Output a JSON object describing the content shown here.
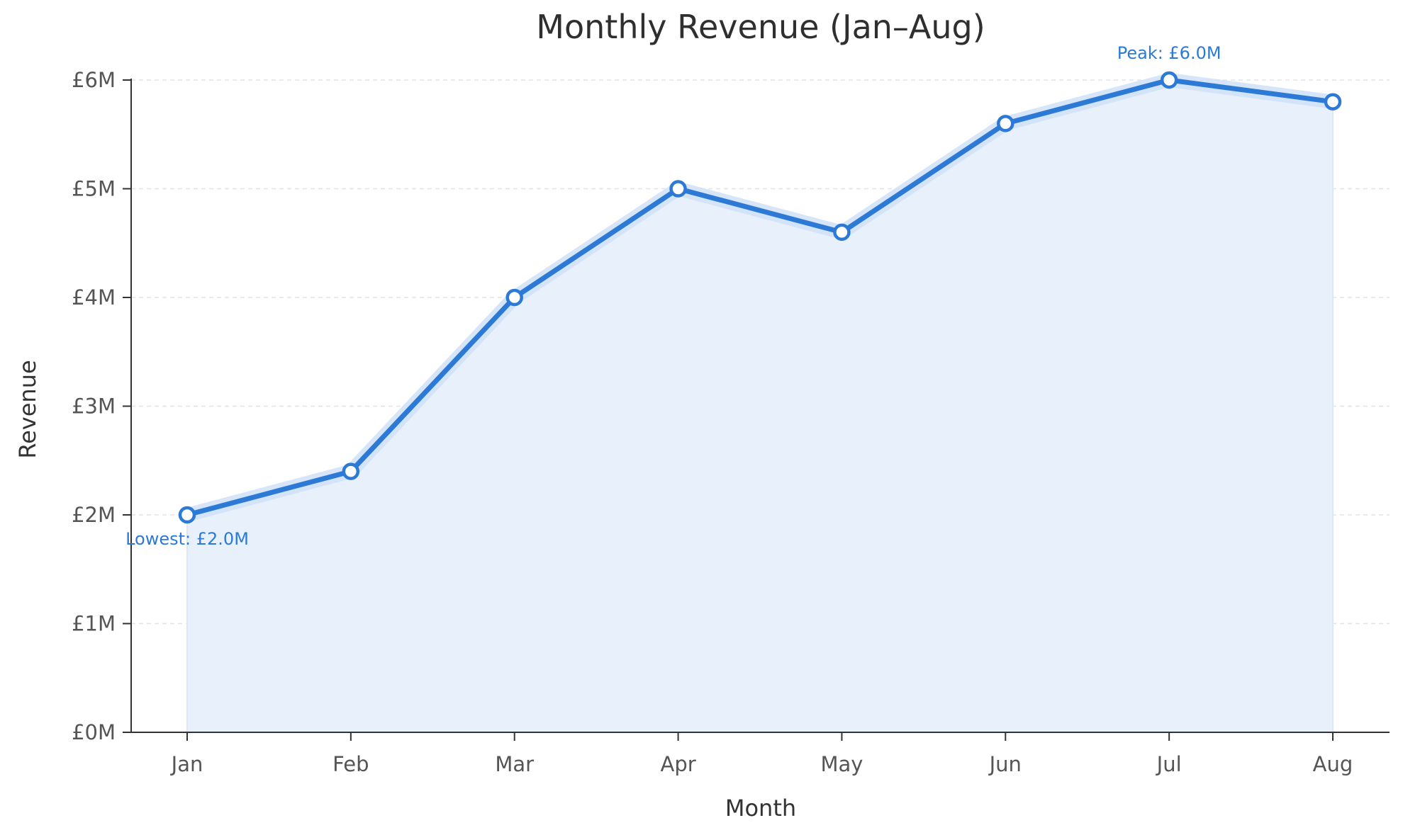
{
  "chart_data": {
    "type": "area",
    "title": "Monthly Revenue (Jan–Aug)",
    "xlabel": "Month",
    "ylabel": "Revenue",
    "categories": [
      "Jan",
      "Feb",
      "Mar",
      "Apr",
      "May",
      "Jun",
      "Jul",
      "Aug"
    ],
    "values": [
      2.0,
      2.4,
      4.0,
      5.0,
      4.6,
      5.6,
      6.0,
      5.8
    ],
    "ylim": [
      0,
      6
    ],
    "yticks": [
      0,
      1,
      2,
      3,
      4,
      5,
      6
    ],
    "ytick_labels": [
      "£0M",
      "£1M",
      "£2M",
      "£3M",
      "£4M",
      "£5M",
      "£6M"
    ],
    "grid": "horizontal dashed",
    "legend": "none",
    "colors": {
      "line": "#2d7ad6",
      "area_fill": "#e8f0fb",
      "line_glow": "#cfe1f7",
      "marker_fill": "#ffffff",
      "annotation": "#2d7ad6"
    },
    "annotations": [
      {
        "category": "Jul",
        "value": 6.0,
        "text": "Peak: £6.0M"
      },
      {
        "category": "Jan",
        "value": 2.0,
        "text": "Lowest: £2.0M"
      }
    ]
  }
}
